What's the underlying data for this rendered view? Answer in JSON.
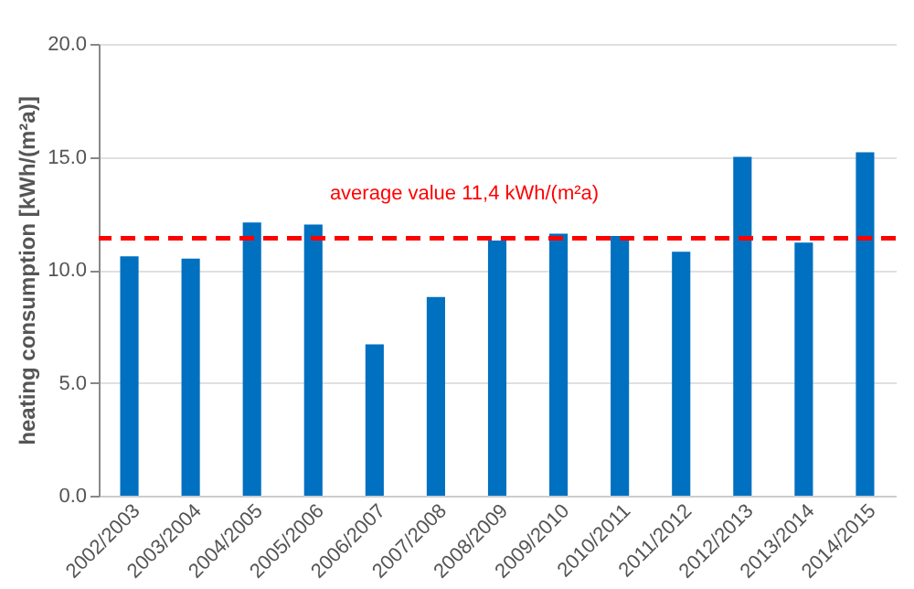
{
  "chart_data": {
    "type": "bar",
    "ylabel": "heating consumption  [kWh/(m²a)]",
    "categories": [
      "2002/2003",
      "2003/2004",
      "2004/2005",
      "2005/2006",
      "2006/2007",
      "2007/2008",
      "2008/2009",
      "2009/2010",
      "2010/2011",
      "2011/2012",
      "2012/2013",
      "2013/2014",
      "2014/2015"
    ],
    "values": [
      10.6,
      10.5,
      12.1,
      12.0,
      6.7,
      8.8,
      11.3,
      11.6,
      11.5,
      10.8,
      15.0,
      11.2,
      15.2
    ],
    "color": "#0070c0",
    "ylim": [
      0,
      20
    ],
    "yticks": [
      {
        "value": 0,
        "label": "0.0"
      },
      {
        "value": 5,
        "label": "5.0"
      },
      {
        "value": 10,
        "label": "10.0"
      },
      {
        "value": 15,
        "label": "15.0"
      },
      {
        "value": 20,
        "label": "20.0"
      }
    ],
    "ref_lines": [
      {
        "axis": "y",
        "value": 11.4,
        "label": "average value 11,4 kWh/(m²a)",
        "color": "#ff0000",
        "line_style": "dashed"
      }
    ],
    "grid": "y"
  }
}
